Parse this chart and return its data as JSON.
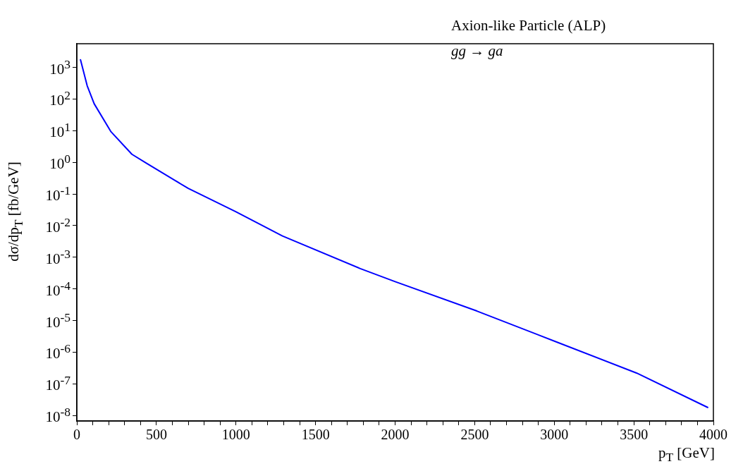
{
  "chart_data": {
    "type": "line",
    "xlabel": "p$_{T}$ [GeV]",
    "ylabel": "dσ/dp$_{T}$ [fb/GeV]",
    "annotations": [
      "Axion-like Particle (ALP)",
      "gg → ga"
    ],
    "x": [
      23,
      65,
      109,
      213,
      346,
      435,
      700,
      996,
      1292,
      1781,
      2000,
      2514,
      3015,
      3517,
      3964
    ],
    "series": [
      {
        "color": "#0000ff",
        "values": [
          1740,
          263,
          71,
          9.5,
          1.8,
          0.95,
          0.15,
          0.028,
          0.0047,
          0.00044,
          0.00017,
          2e-05,
          2.1e-06,
          2.2e-07,
          1.8e-08
        ]
      }
    ],
    "xlim": [
      0,
      4000
    ],
    "ylim": [
      6.7e-09,
      5600
    ],
    "xticks": [
      0,
      {
        "value": 100,
        "label": null
      },
      {
        "value": 200,
        "label": null
      },
      {
        "value": 300,
        "label": null
      },
      {
        "value": 400,
        "label": null
      },
      500,
      {
        "value": 600,
        "label": null
      },
      {
        "value": 700,
        "label": null
      },
      {
        "value": 800,
        "label": null
      },
      {
        "value": 900,
        "label": null
      },
      1000,
      {
        "value": 1100,
        "label": null
      },
      {
        "value": 1200,
        "label": null
      },
      {
        "value": 1300,
        "label": null
      },
      {
        "value": 1400,
        "label": null
      },
      1500,
      {
        "value": 1600,
        "label": null
      },
      {
        "value": 1700,
        "label": null
      },
      {
        "value": 1800,
        "label": null
      },
      {
        "value": 1900,
        "label": null
      },
      2000,
      {
        "value": 2100,
        "label": null
      },
      {
        "value": 2200,
        "label": null
      },
      {
        "value": 2300,
        "label": null
      },
      {
        "value": 2400,
        "label": null
      },
      2500,
      {
        "value": 2600,
        "label": null
      },
      {
        "value": 2700,
        "label": null
      },
      {
        "value": 2800,
        "label": null
      },
      {
        "value": 2900,
        "label": null
      },
      3000,
      {
        "value": 3100,
        "label": null
      },
      {
        "value": 3200,
        "label": null
      },
      {
        "value": 3300,
        "label": null
      },
      {
        "value": 3400,
        "label": null
      },
      3500,
      {
        "value": 3600,
        "label": null
      },
      {
        "value": 3700,
        "label": null
      },
      {
        "value": 3800,
        "label": null
      },
      {
        "value": 3900,
        "label": null
      },
      4000
    ],
    "yticks": [
      {
        "value": 1e-08,
        "label": "10$^{-8}$"
      },
      {
        "value": 1e-07,
        "label": "10$^{-7}$"
      },
      {
        "value": 1e-06,
        "label": "10$^{-6}$"
      },
      {
        "value": 1e-05,
        "label": "10$^{-5}$"
      },
      {
        "value": 0.0001,
        "label": "10$^{-4}$"
      },
      {
        "value": 0.001,
        "label": "10$^{-3}$"
      },
      {
        "value": 0.01,
        "label": "10$^{-2}$"
      },
      {
        "value": 0.1,
        "label": "10$^{-1}$"
      },
      {
        "value": 1,
        "label": "10$^{0}$"
      },
      {
        "value": 10,
        "label": "10$^{1}$"
      },
      {
        "value": 100,
        "label": "10$^{2}$"
      },
      {
        "value": 1000,
        "label": "10$^{3}$"
      }
    ],
    "log": true,
    "grid": false,
    "legend": false,
    "marker": "none",
    "line_style": "solid"
  }
}
